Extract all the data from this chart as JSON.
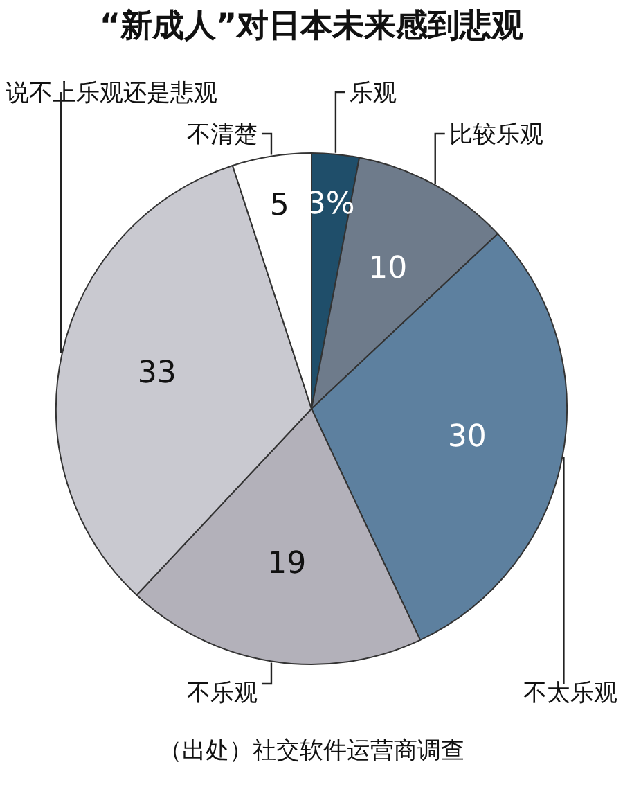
{
  "chart_data": {
    "type": "pie",
    "title": "“新成人”对日本未来感到悲观",
    "categories": [
      "乐观",
      "比较乐观",
      "不太乐观",
      "不乐观",
      "说不上乐观还是悲观",
      "不清楚"
    ],
    "values": [
      3,
      10,
      30,
      19,
      33,
      5
    ],
    "colors": [
      "#1f4e6a",
      "#6e7b8b",
      "#5d809f",
      "#b3b1ba",
      "#c9c9d0",
      "#ffffff"
    ],
    "value_labels": [
      "3%",
      "10",
      "30",
      "19",
      "33",
      "5"
    ],
    "annotations": [
      "（出处）社交软件运营商调查"
    ]
  }
}
